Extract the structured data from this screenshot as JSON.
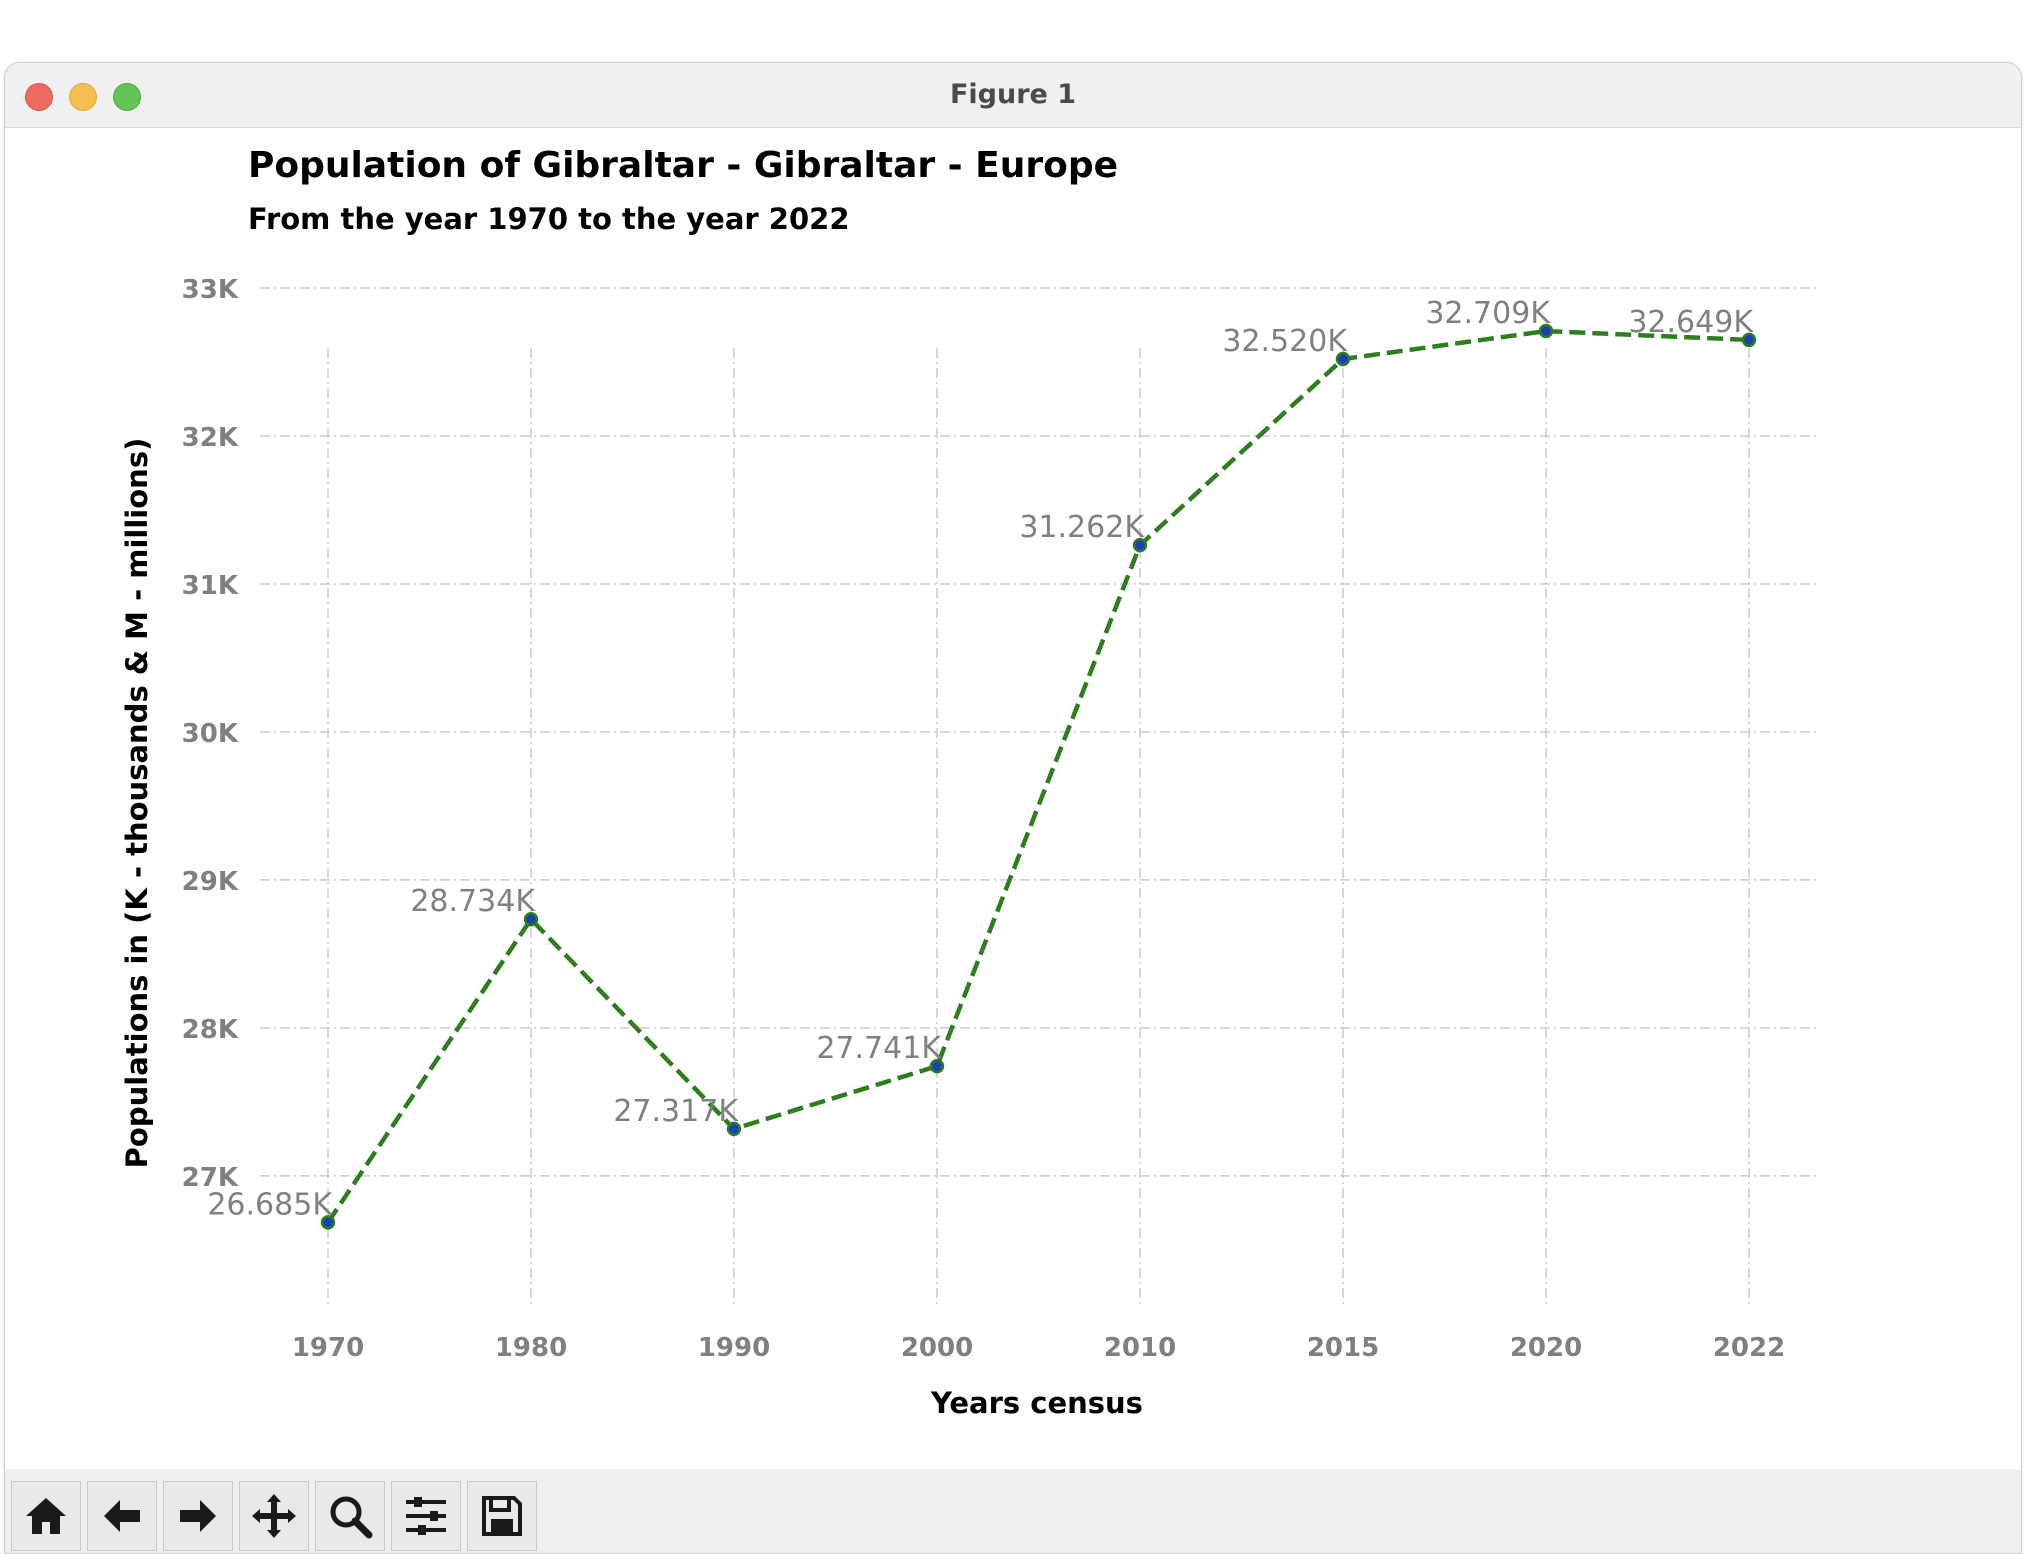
{
  "window": {
    "title": "Figure 1"
  },
  "toolbar": {
    "buttons": [
      {
        "name": "home",
        "icon": "home-icon"
      },
      {
        "name": "back",
        "icon": "arrow-left-icon"
      },
      {
        "name": "forward",
        "icon": "arrow-right-icon"
      },
      {
        "name": "pan",
        "icon": "move-icon"
      },
      {
        "name": "zoom",
        "icon": "magnifier-icon"
      },
      {
        "name": "configure",
        "icon": "sliders-icon"
      },
      {
        "name": "save",
        "icon": "floppy-disk-icon"
      }
    ]
  },
  "chart_data": {
    "type": "line",
    "title": "Population of Gibraltar - Gibraltar - Europe",
    "subtitle": "From the year 1970 to the year 2022",
    "xlabel": "Years census",
    "ylabel": "Populations in (K - thousands & M - millions)",
    "categories": [
      "1970",
      "1980",
      "1990",
      "2000",
      "2010",
      "2015",
      "2020",
      "2022"
    ],
    "series": [
      {
        "values": [
          26685,
          28734,
          27317,
          27741,
          31262,
          32520,
          32709,
          32649
        ],
        "labels": [
          "26.685K",
          "28.734K",
          "27.317K",
          "27.741K",
          "31.262K",
          "32.520K",
          "32.709K",
          "32.649K"
        ]
      }
    ],
    "y_ticks": [
      27000,
      28000,
      29000,
      30000,
      31000,
      32000,
      33000
    ],
    "y_tick_labels": [
      "27K",
      "28K",
      "29K",
      "30K",
      "31K",
      "32K",
      "33K"
    ],
    "ylim": [
      26350,
      33000
    ],
    "grid": true,
    "line_style": "dashed",
    "colors": {
      "line": "#2e7d1f",
      "marker_fill": "#1a3fb8",
      "marker_edge": "#2e7d1f",
      "data_label": "#808080",
      "tick_label": "#808080",
      "grid": "#cccccc"
    }
  }
}
